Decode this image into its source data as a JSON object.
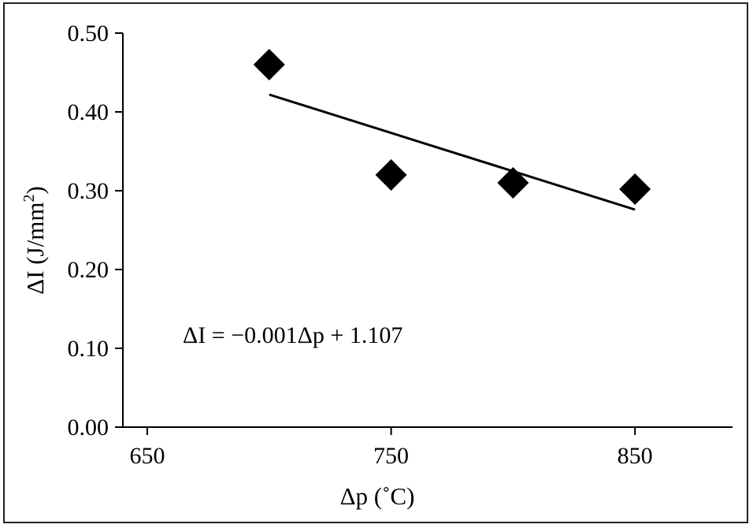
{
  "chart_data": {
    "type": "scatter",
    "x": [
      700,
      750,
      800,
      850
    ],
    "y": [
      0.46,
      0.32,
      0.31,
      0.302
    ],
    "xlim": [
      640,
      890
    ],
    "ylim": [
      0,
      0.5
    ],
    "xticks": [
      650,
      750,
      850
    ],
    "xtick_labels": [
      "650",
      "750",
      "850"
    ],
    "yticks": [
      0,
      0.1,
      0.2,
      0.3,
      0.4,
      0.5
    ],
    "ytick_labels": [
      "0.00",
      "0.10",
      "0.20",
      "0.30",
      "0.40",
      "0.50"
    ],
    "xlabel": "Δp (˚C)",
    "ylabel_main": "ΔI (J/mm",
    "ylabel_sup": "2",
    "ylabel_close": ")",
    "marker": "diamond",
    "marker_color": "#000000",
    "line_color": "#000000",
    "grid": false,
    "fit": {
      "slope": -0.001,
      "intercept": 1.107,
      "x_range": [
        700,
        850
      ],
      "y_start": 0.422,
      "y_end": 0.276,
      "equation": "ΔI = −0.001Δp + 1.107"
    }
  }
}
